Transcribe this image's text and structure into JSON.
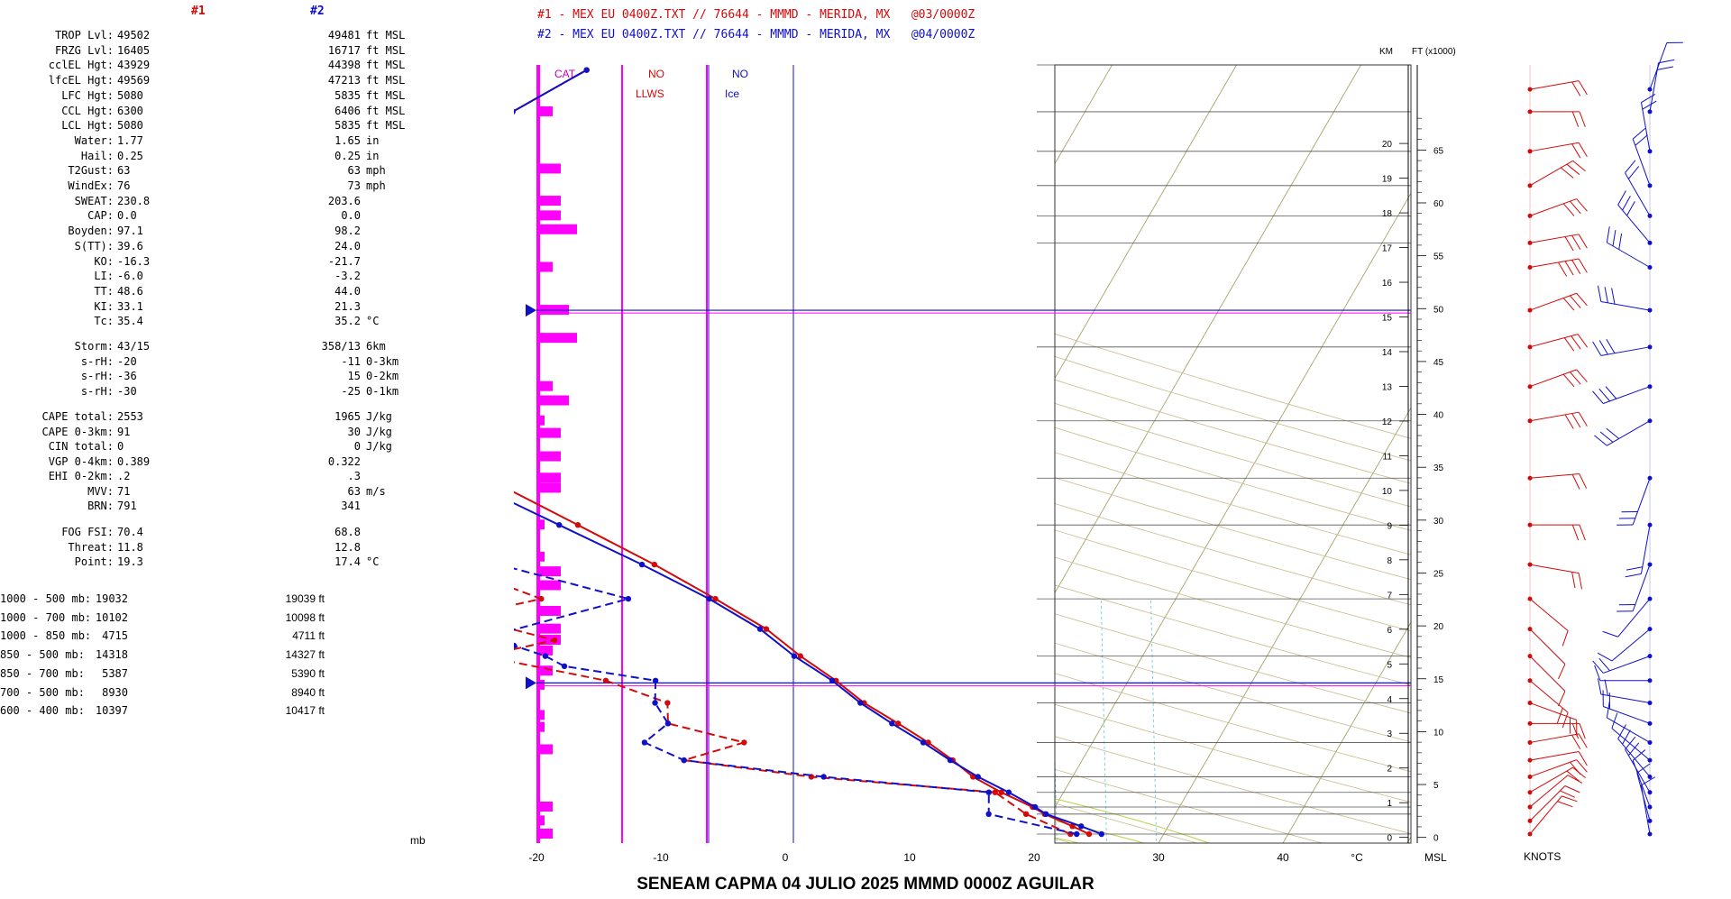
{
  "left_panel": {
    "col_heads": [
      "#1",
      "#2"
    ],
    "colors": {
      "s1": "#d20a0a",
      "s2": "#1010c8"
    },
    "indices": [
      {
        "label": "TROP Lvl:",
        "v1": "49502",
        "v2": "49481",
        "unit": "ft MSL"
      },
      {
        "label": "FRZG Lvl:",
        "v1": "16405",
        "v2": "16717",
        "unit": "ft MSL"
      },
      {
        "label": "cclEL Hgt:",
        "v1": "43929",
        "v2": "44398",
        "unit": "ft MSL"
      },
      {
        "label": "lfcEL Hgt:",
        "v1": "49569",
        "v2": "47213",
        "unit": "ft MSL"
      },
      {
        "label": "LFC Hgt:",
        "v1": "5080",
        "v2": "5835",
        "unit": "ft MSL"
      },
      {
        "label": "CCL Hgt:",
        "v1": "6300",
        "v2": "6406",
        "unit": "ft MSL"
      },
      {
        "label": "LCL Hgt:",
        "v1": "5080",
        "v2": "5835",
        "unit": "ft MSL"
      },
      {
        "label": "Water:",
        "v1": "1.77",
        "v2": "1.65",
        "unit": "in"
      },
      {
        "label": "Hail:",
        "v1": "0.25",
        "v2": "0.25",
        "unit": "in"
      },
      {
        "label": "T2Gust:",
        "v1": "63",
        "v2": "63",
        "unit": "mph"
      },
      {
        "label": "WindEx:",
        "v1": "76",
        "v2": "73",
        "unit": "mph"
      },
      {
        "label": "SWEAT:",
        "v1": "230.8",
        "v2": "203.6",
        "unit": ""
      },
      {
        "label": "CAP:",
        "v1": "0.0",
        "v2": "0.0",
        "unit": ""
      },
      {
        "label": "Boyden:",
        "v1": "97.1",
        "v2": "98.2",
        "unit": ""
      },
      {
        "label": "S(TT):",
        "v1": "39.6",
        "v2": "24.0",
        "unit": ""
      },
      {
        "label": "KO:",
        "v1": "-16.3",
        "v2": "-21.7",
        "unit": ""
      },
      {
        "label": "LI:",
        "v1": "-6.0",
        "v2": "-3.2",
        "unit": ""
      },
      {
        "label": "TT:",
        "v1": "48.6",
        "v2": "44.0",
        "unit": ""
      },
      {
        "label": "KI:",
        "v1": "33.1",
        "v2": "21.3",
        "unit": ""
      },
      {
        "label": "Tc:",
        "v1": "35.4",
        "v2": "35.2",
        "unit": "°C"
      }
    ],
    "storm": [
      {
        "label": "Storm:",
        "v1": "43/15",
        "v2": "358/13",
        "unit": "6km"
      },
      {
        "label": "s-rH:",
        "v1": "-20",
        "v2": "-11",
        "unit": "0-3km"
      },
      {
        "label": "s-rH:",
        "v1": "-36",
        "v2": "15",
        "unit": "0-2km"
      },
      {
        "label": "s-rH:",
        "v1": "-30",
        "v2": "-25",
        "unit": "0-1km"
      }
    ],
    "cape": [
      {
        "label": "CAPE total:",
        "v1": "2553",
        "v2": "1965",
        "unit": "J/kg"
      },
      {
        "label": "CAPE 0-3km:",
        "v1": "91",
        "v2": "30",
        "unit": "J/kg"
      },
      {
        "label": "CIN total:",
        "v1": "0",
        "v2": "0",
        "unit": "J/kg"
      },
      {
        "label": "VGP 0-4km:",
        "v1": "0.389",
        "v2": "0.322",
        "unit": ""
      },
      {
        "label": "EHI 0-2km:",
        "v1": ".2",
        "v2": ".3",
        "unit": ""
      },
      {
        "label": "MVV:",
        "v1": "71",
        "v2": "63",
        "unit": "m/s"
      },
      {
        "label": "BRN:",
        "v1": "791",
        "v2": "341",
        "unit": ""
      }
    ],
    "fog": [
      {
        "label": "FOG FSI:",
        "v1": "70.4",
        "v2": "68.8",
        "unit": ""
      },
      {
        "label": "Threat:",
        "v1": "11.8",
        "v2": "12.8",
        "unit": ""
      },
      {
        "label": "Point:",
        "v1": "19.3",
        "v2": "17.4",
        "unit": "°C"
      }
    ],
    "thickness": [
      {
        "label": "1000 - 500 mb:",
        "v1": "19032",
        "v2": "19039 ft"
      },
      {
        "label": "1000 - 700 mb:",
        "v1": "10102",
        "v2": "10098 ft"
      },
      {
        "label": "1000 - 850 mb:",
        "v1": "4715",
        "v2": "4711 ft"
      },
      {
        "label": "850 - 500 mb:",
        "v1": "14318",
        "v2": "14327 ft"
      },
      {
        "label": "850 - 700 mb:",
        "v1": "5387",
        "v2": "5390 ft"
      },
      {
        "label": "700 - 500 mb:",
        "v1": "8930",
        "v2": "8940 ft"
      },
      {
        "label": "600 - 400 mb:",
        "v1": "10397",
        "v2": "10417 ft"
      }
    ],
    "mb_label": "mb"
  },
  "header": {
    "line1": "#1 - MEX EU 0400Z.TXT // 76644 - MMMD - MERIDA, MX   @03/0000Z",
    "line2": "#2 - MEX EU 0400Z.TXT // 76644 - MMMD - MERIDA, MX   @04/0000Z"
  },
  "footer": "SENEAM  CAPMA  04 JULIO 2025  MMMD  0000Z  AGUILAR",
  "chart_data": {
    "type": "skew-t",
    "x_axis": {
      "label": "°C",
      "range": [
        -20,
        50
      ],
      "ticks": [
        -20,
        -10,
        0,
        10,
        20,
        30,
        40
      ]
    },
    "y_axis": {
      "label": "mb",
      "scale": "log",
      "range": [
        1050,
        50
      ],
      "ticks": [
        50,
        60,
        70,
        80,
        90,
        100,
        150,
        200,
        250,
        300,
        400,
        500,
        600,
        700,
        800,
        850,
        900,
        925,
        1000
      ]
    },
    "km_axis": {
      "label": "KM",
      "ticks": [
        0,
        1,
        2,
        3,
        4,
        5,
        6,
        7,
        8,
        9,
        10,
        11,
        12,
        13,
        14,
        15,
        16,
        17,
        18,
        19,
        20
      ]
    },
    "ft_axis": {
      "label": "FT (x1000)",
      "ticks": [
        0,
        5,
        10,
        15,
        20,
        25,
        30,
        35,
        40,
        45,
        50,
        55,
        60,
        65
      ],
      "bottom_label": "MSL"
    },
    "strip_labels": {
      "cat": "CAT",
      "llws_1": "NO",
      "llws_2": "LLWS",
      "ice_1": "NO",
      "ice_2": "Ice"
    },
    "wind_label": "KNOTS",
    "markers": {
      "tropopause_mb": 130,
      "freezing_mb": 555
    },
    "series": [
      {
        "name": "#1",
        "color": "#d20a0a",
        "temperature": [
          [
            1000,
            24
          ],
          [
            970,
            22.3
          ],
          [
            925,
            19.5
          ],
          [
            900,
            18.2
          ],
          [
            850,
            15.0
          ],
          [
            800,
            12.0
          ],
          [
            750,
            9.6
          ],
          [
            700,
            6.8
          ],
          [
            650,
            3.5
          ],
          [
            600,
            -0.2
          ],
          [
            550,
            -3.5
          ],
          [
            500,
            -7.5
          ],
          [
            450,
            -11.5
          ],
          [
            400,
            -17
          ],
          [
            350,
            -23.5
          ],
          [
            300,
            -31.5
          ],
          [
            250,
            -41
          ],
          [
            200,
            -52.5
          ],
          [
            175,
            -59
          ],
          [
            150,
            -67
          ],
          [
            130,
            -73
          ],
          [
            100,
            -70
          ],
          [
            80,
            -65
          ],
          [
            70,
            -61
          ],
          [
            60,
            -56
          ],
          [
            51,
            -52
          ]
        ],
        "dewpoint": [
          [
            1000,
            22.5
          ],
          [
            925,
            18
          ],
          [
            850,
            14.5
          ],
          [
            800,
            -1
          ],
          [
            750,
            -12
          ],
          [
            700,
            -8
          ],
          [
            650,
            -15
          ],
          [
            600,
            -16
          ],
          [
            550,
            -22
          ],
          [
            500,
            -33
          ],
          [
            470,
            -28
          ],
          [
            450,
            -32
          ],
          [
            420,
            -35
          ],
          [
            400,
            -31
          ],
          [
            350,
            -40
          ],
          [
            300,
            -49
          ],
          [
            250,
            -54
          ],
          [
            220,
            -57
          ],
          [
            210,
            -50
          ],
          [
            200,
            -51
          ],
          [
            175,
            -52
          ],
          [
            150,
            -57
          ],
          [
            130,
            -59
          ],
          [
            120,
            -58
          ],
          [
            100,
            -61
          ],
          [
            90,
            -62
          ],
          [
            80,
            -63
          ],
          [
            70,
            -65
          ],
          [
            60,
            -66
          ],
          [
            51,
            -67
          ]
        ]
      },
      {
        "name": "#2",
        "color": "#1010c8",
        "temperature": [
          [
            1000,
            25
          ],
          [
            970,
            23
          ],
          [
            925,
            19.6
          ],
          [
            900,
            18.4
          ],
          [
            850,
            15.6
          ],
          [
            800,
            12.4
          ],
          [
            750,
            9.4
          ],
          [
            700,
            6.4
          ],
          [
            650,
            3.0
          ],
          [
            600,
            -0.5
          ],
          [
            550,
            -3.8
          ],
          [
            500,
            -8
          ],
          [
            450,
            -12
          ],
          [
            400,
            -17.5
          ],
          [
            350,
            -24.5
          ],
          [
            300,
            -33
          ],
          [
            250,
            -43
          ],
          [
            200,
            -54
          ],
          [
            175,
            -60
          ],
          [
            150,
            -67
          ],
          [
            130,
            -72
          ],
          [
            100,
            -71
          ],
          [
            80,
            -66
          ],
          [
            70,
            -60
          ],
          [
            60,
            -56
          ],
          [
            51,
            -52
          ]
        ],
        "dewpoint": [
          [
            1000,
            23
          ],
          [
            925,
            15
          ],
          [
            850,
            14
          ],
          [
            800,
            0
          ],
          [
            750,
            -12
          ],
          [
            700,
            -16
          ],
          [
            650,
            -15
          ],
          [
            600,
            -17
          ],
          [
            550,
            -18
          ],
          [
            520,
            -26
          ],
          [
            500,
            -28
          ],
          [
            480,
            -31
          ],
          [
            460,
            -33
          ],
          [
            400,
            -24
          ],
          [
            350,
            -36
          ],
          [
            300,
            -49
          ],
          [
            250,
            -54
          ],
          [
            220,
            -60
          ],
          [
            200,
            -61
          ],
          [
            175,
            -68
          ],
          [
            150,
            -66
          ],
          [
            130,
            -63
          ],
          [
            120,
            -62
          ],
          [
            100,
            -60
          ],
          [
            90,
            -62
          ],
          [
            80,
            -63
          ],
          [
            70,
            -64
          ],
          [
            60,
            -67
          ],
          [
            51,
            -66
          ]
        ]
      }
    ],
    "cat_bars": [
      [
        60,
        2
      ],
      [
        75,
        3
      ],
      [
        85,
        3
      ],
      [
        90,
        3
      ],
      [
        95,
        5
      ],
      [
        110,
        2
      ],
      [
        130,
        4
      ],
      [
        145,
        5
      ],
      [
        175,
        2
      ],
      [
        185,
        4
      ],
      [
        200,
        1
      ],
      [
        210,
        3
      ],
      [
        230,
        3
      ],
      [
        250,
        3
      ],
      [
        260,
        3
      ],
      [
        300,
        1
      ],
      [
        340,
        1
      ],
      [
        360,
        3
      ],
      [
        380,
        3
      ],
      [
        420,
        3
      ],
      [
        450,
        3
      ],
      [
        470,
        3
      ],
      [
        490,
        2
      ],
      [
        530,
        2
      ],
      [
        560,
        1
      ],
      [
        630,
        1
      ],
      [
        660,
        1
      ],
      [
        720,
        2
      ],
      [
        900,
        2
      ],
      [
        950,
        1
      ],
      [
        1000,
        2
      ]
    ],
    "wind_barbs": {
      "s1": [
        [
          1000,
          40,
          15
        ],
        [
          950,
          45,
          16
        ],
        [
          900,
          50,
          14
        ],
        [
          850,
          60,
          18
        ],
        [
          800,
          70,
          15
        ],
        [
          750,
          80,
          14
        ],
        [
          700,
          80,
          18
        ],
        [
          650,
          90,
          15
        ],
        [
          600,
          110,
          20
        ],
        [
          550,
          130,
          15
        ],
        [
          500,
          135,
          12
        ],
        [
          450,
          135,
          13
        ],
        [
          400,
          130,
          14
        ],
        [
          350,
          100,
          15
        ],
        [
          300,
          90,
          20
        ],
        [
          250,
          85,
          22
        ],
        [
          200,
          80,
          26
        ],
        [
          175,
          70,
          25
        ],
        [
          150,
          75,
          28
        ],
        [
          130,
          70,
          30
        ],
        [
          110,
          80,
          35
        ],
        [
          100,
          80,
          30
        ],
        [
          90,
          70,
          28
        ],
        [
          80,
          60,
          25
        ],
        [
          70,
          80,
          20
        ],
        [
          60,
          90,
          18
        ],
        [
          55,
          80,
          15
        ]
      ],
      "s2": [
        [
          1000,
          350,
          12
        ],
        [
          950,
          345,
          10
        ],
        [
          900,
          340,
          12
        ],
        [
          850,
          330,
          15
        ],
        [
          800,
          320,
          18
        ],
        [
          750,
          310,
          14
        ],
        [
          700,
          300,
          12
        ],
        [
          650,
          290,
          15
        ],
        [
          600,
          280,
          18
        ],
        [
          550,
          270,
          10
        ],
        [
          500,
          250,
          15
        ],
        [
          450,
          230,
          12
        ],
        [
          400,
          220,
          10
        ],
        [
          350,
          200,
          15
        ],
        [
          300,
          190,
          20
        ],
        [
          250,
          200,
          25
        ],
        [
          200,
          240,
          30
        ],
        [
          175,
          250,
          28
        ],
        [
          150,
          260,
          25
        ],
        [
          130,
          280,
          30
        ],
        [
          110,
          300,
          28
        ],
        [
          100,
          320,
          25
        ],
        [
          90,
          330,
          22
        ],
        [
          80,
          340,
          20
        ],
        [
          70,
          350,
          18
        ],
        [
          60,
          10,
          15
        ],
        [
          55,
          20,
          12
        ]
      ]
    }
  }
}
